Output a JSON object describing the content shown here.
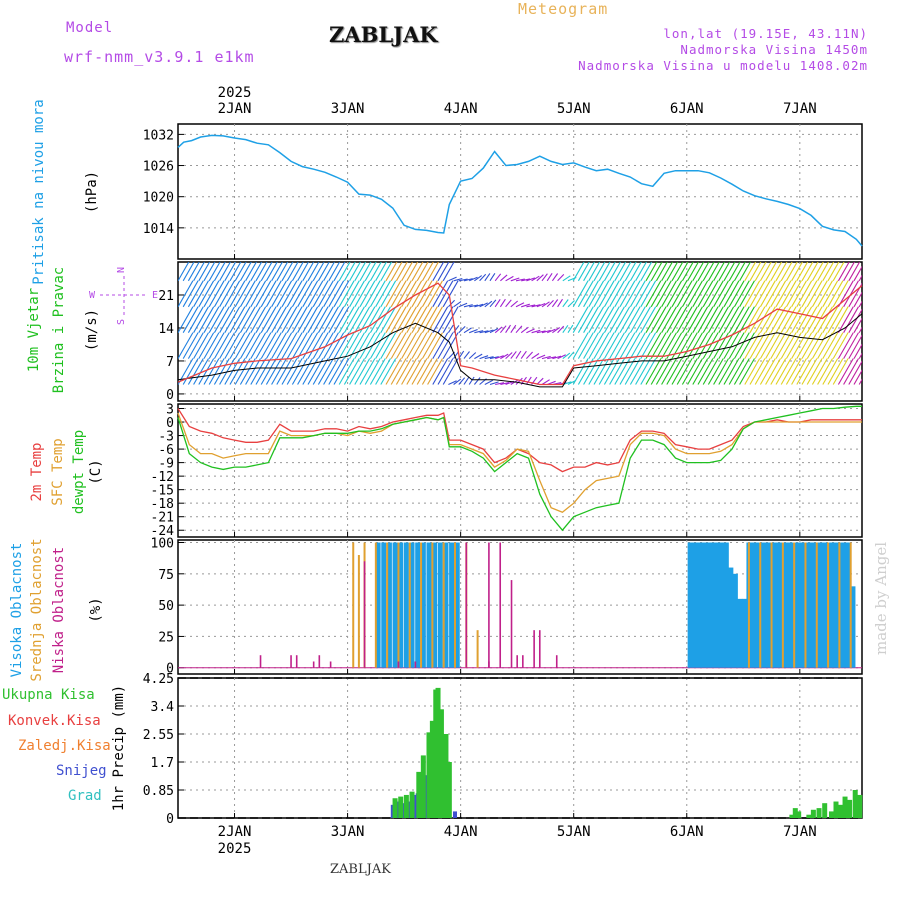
{
  "header": {
    "model_label": "Model",
    "model_value": "wrf-nmm_v3.9.1 e1km",
    "station": "ZABLJAK",
    "meteogram": "Meteogram",
    "lonlat": "lon,lat (19.15E, 43.11N)",
    "elevation": "Nadmorska Visina 1450m",
    "model_elevation": "Nadmorska Visina u modelu 1408.02m"
  },
  "footer": {
    "station": "ZABLJAK",
    "watermark": "made by Angel"
  },
  "colors": {
    "pressure": "#1ea0e6",
    "high_cloud": "#1ea0e6",
    "mid_cloud": "#e0a030",
    "low_cloud": "#c0208a",
    "temp_2m": "#e84040",
    "temp_sfc": "#e0a030",
    "dewpoint": "#20c020",
    "total_precip": "#30c030",
    "conv_precip": "#e84040",
    "frozen_precip": "#f08030",
    "snow": "#4050d0",
    "graupel": "#30c0c0",
    "grid": "#999999"
  },
  "chart_data": [
    {
      "type": "line",
      "name": "pressure",
      "ylabel": [
        "Pritisak na nivou mora",
        "(hPa)"
      ],
      "yticks": [
        1014,
        1020,
        1026,
        1032
      ],
      "ylim": [
        1008,
        1034
      ],
      "xlim": [
        1.5,
        7.55
      ],
      "top_year": "2025",
      "top_ticks": [
        "2JAN",
        "3JAN",
        "4JAN",
        "5JAN",
        "6JAN",
        "7JAN"
      ],
      "x": [
        1.5,
        1.55,
        1.62,
        1.7,
        1.8,
        1.9,
        2.0,
        2.1,
        2.2,
        2.3,
        2.4,
        2.5,
        2.6,
        2.7,
        2.8,
        2.9,
        3.0,
        3.1,
        3.2,
        3.3,
        3.4,
        3.5,
        3.6,
        3.7,
        3.8,
        3.85,
        3.9,
        4.0,
        4.1,
        4.2,
        4.3,
        4.4,
        4.5,
        4.6,
        4.7,
        4.8,
        4.9,
        5.0,
        5.1,
        5.2,
        5.3,
        5.4,
        5.5,
        5.6,
        5.7,
        5.8,
        5.9,
        6.0,
        6.1,
        6.2,
        6.3,
        6.4,
        6.5,
        6.6,
        6.7,
        6.8,
        6.9,
        7.0,
        7.1,
        7.2,
        7.3,
        7.4,
        7.5,
        7.55
      ],
      "y": [
        1029.5,
        1030.5,
        1030.8,
        1031.5,
        1031.8,
        1031.7,
        1031.3,
        1031.0,
        1030.3,
        1030.0,
        1028.5,
        1026.8,
        1025.8,
        1025.3,
        1024.7,
        1023.8,
        1022.8,
        1020.5,
        1020.3,
        1019.5,
        1017.8,
        1014.5,
        1013.7,
        1013.5,
        1013.1,
        1013.0,
        1018.5,
        1023.0,
        1023.5,
        1025.5,
        1028.7,
        1026.0,
        1026.2,
        1026.8,
        1027.8,
        1026.8,
        1026.2,
        1026.5,
        1025.7,
        1025.0,
        1025.3,
        1024.5,
        1023.8,
        1022.5,
        1022.0,
        1024.5,
        1025.0,
        1025.0,
        1025.0,
        1024.6,
        1023.6,
        1022.4,
        1021.1,
        1020.2,
        1019.6,
        1019.1,
        1018.5,
        1017.7,
        1016.4,
        1014.3,
        1013.6,
        1013.3,
        1011.8,
        1010.5
      ]
    },
    {
      "type": "line",
      "name": "wind",
      "ylabel": [
        "10m Vjetar",
        "Brzina i Pravac",
        "(m/s)"
      ],
      "direction_legend": [
        "N",
        "S",
        "W",
        "E"
      ],
      "yticks": [
        0,
        7,
        14,
        21
      ],
      "ylim": [
        -1.5,
        28
      ],
      "series": [
        {
          "name": "mean speed",
          "x": [
            1.5,
            1.8,
            2.0,
            2.2,
            2.5,
            2.8,
            3.0,
            3.2,
            3.4,
            3.6,
            3.8,
            3.9,
            4.0,
            4.1,
            4.3,
            4.5,
            4.7,
            4.9,
            5.0,
            5.2,
            5.4,
            5.6,
            5.8,
            6.0,
            6.2,
            6.4,
            6.6,
            6.8,
            7.0,
            7.2,
            7.4,
            7.55
          ],
          "y": [
            3,
            4,
            5,
            5.5,
            5.5,
            7,
            8,
            10,
            13,
            15,
            13,
            11,
            5,
            3,
            3,
            2.5,
            1.5,
            1.5,
            5.5,
            6,
            6.5,
            7,
            7,
            8,
            9,
            10,
            12,
            13,
            12,
            11.5,
            14,
            17
          ]
        },
        {
          "name": "gust",
          "x": [
            1.5,
            1.8,
            2.0,
            2.2,
            2.5,
            2.8,
            3.0,
            3.2,
            3.4,
            3.6,
            3.8,
            3.9,
            4.0,
            4.1,
            4.3,
            4.5,
            4.7,
            4.9,
            5.0,
            5.2,
            5.4,
            5.6,
            5.8,
            6.0,
            6.2,
            6.4,
            6.6,
            6.8,
            7.0,
            7.2,
            7.4,
            7.55
          ],
          "y": [
            2.5,
            5.5,
            6.5,
            7,
            7.5,
            10,
            12.5,
            14.5,
            18,
            21,
            23.5,
            21,
            6,
            5.5,
            4,
            3,
            2,
            2,
            6,
            7,
            7.5,
            8,
            8,
            9,
            10.5,
            12.5,
            15,
            18,
            17,
            16,
            20,
            23
          ]
        }
      ]
    },
    {
      "type": "line",
      "name": "temperature",
      "ylabel": [
        "2m Temp",
        "SFC Temp",
        "dewpt Temp",
        "(C)"
      ],
      "yticks": [
        3,
        0,
        -3,
        -6,
        -9,
        -12,
        -15,
        -18,
        -21,
        -24
      ],
      "ylim": [
        -25.5,
        4
      ],
      "x": [
        1.5,
        1.6,
        1.7,
        1.8,
        1.9,
        2.0,
        2.1,
        2.2,
        2.3,
        2.4,
        2.5,
        2.6,
        2.7,
        2.8,
        2.9,
        3.0,
        3.1,
        3.2,
        3.3,
        3.4,
        3.5,
        3.6,
        3.7,
        3.8,
        3.85,
        3.9,
        4.0,
        4.1,
        4.2,
        4.3,
        4.4,
        4.5,
        4.6,
        4.7,
        4.8,
        4.9,
        5.0,
        5.1,
        5.2,
        5.3,
        5.4,
        5.5,
        5.6,
        5.7,
        5.8,
        5.9,
        6.0,
        6.1,
        6.2,
        6.3,
        6.4,
        6.5,
        6.6,
        6.7,
        6.8,
        6.9,
        7.0,
        7.1,
        7.2,
        7.3,
        7.4,
        7.5,
        7.55
      ],
      "series": [
        {
          "name": "2m Temp",
          "y": [
            3,
            -1,
            -2,
            -2.5,
            -3.5,
            -4,
            -4.5,
            -4.5,
            -4,
            -0.5,
            -2,
            -2,
            -2,
            -1.5,
            -1.5,
            -2,
            -1,
            -1.5,
            -1,
            0,
            0.5,
            1,
            1.5,
            1.5,
            2,
            -4,
            -4,
            -5,
            -6,
            -9,
            -8,
            -6,
            -7,
            -9,
            -9.5,
            -11,
            -10,
            -10,
            -9,
            -9.5,
            -9,
            -4,
            -2,
            -2,
            -2.5,
            -5,
            -5.5,
            -6,
            -6,
            -5,
            -4,
            -1,
            0,
            0,
            0.5,
            0,
            0,
            0.5,
            0.5,
            0.5,
            0.5,
            0.5,
            0.5
          ]
        },
        {
          "name": "SFC Temp",
          "y": [
            2,
            -5,
            -7,
            -7,
            -8,
            -7.5,
            -7,
            -7,
            -7,
            -2,
            -3,
            -3,
            -3,
            -2.5,
            -2.5,
            -3,
            -2,
            -2.5,
            -2,
            -0.5,
            0,
            0.5,
            1,
            0.5,
            1,
            -5,
            -5,
            -6,
            -7,
            -10,
            -8.5,
            -6,
            -6.5,
            -13,
            -19,
            -20,
            -18,
            -15,
            -13,
            -12.5,
            -12,
            -5,
            -2.5,
            -2.5,
            -3,
            -6,
            -7,
            -7,
            -7,
            -6.5,
            -5,
            -1.5,
            0,
            0,
            0,
            0,
            0,
            0,
            0,
            0,
            0,
            0,
            0
          ]
        },
        {
          "name": "dewpt Temp",
          "y": [
            1,
            -7,
            -9,
            -10,
            -10.5,
            -10,
            -10,
            -9.5,
            -9,
            -3.5,
            -3.5,
            -3.5,
            -3,
            -2.5,
            -2.5,
            -2.5,
            -2,
            -2,
            -1.5,
            -0.5,
            0,
            0.5,
            1,
            0.5,
            1,
            -5.5,
            -5.5,
            -6.5,
            -8,
            -11,
            -9,
            -7,
            -8,
            -16,
            -21,
            -24,
            -21,
            -20,
            -19,
            -18.5,
            -18,
            -8,
            -4,
            -4,
            -5,
            -8,
            -9,
            -9,
            -9,
            -8.5,
            -6,
            -1.5,
            0,
            0.5,
            1,
            1.5,
            2,
            2.5,
            3,
            3,
            3.3,
            3.5,
            3.5
          ]
        }
      ]
    },
    {
      "type": "bar",
      "name": "cloud",
      "ylabel": [
        "Visoka Oblacnost",
        "Srednja Oblacnost",
        "Niska Oblacnost",
        "(%)"
      ],
      "yticks": [
        0,
        25,
        50,
        75,
        100
      ],
      "ylim": [
        -5,
        102
      ],
      "series": [
        {
          "name": "Visoka Oblacnost",
          "x": [
            3.27,
            3.32,
            3.37,
            3.42,
            3.47,
            3.52,
            3.57,
            3.62,
            3.67,
            3.72,
            3.77,
            3.82,
            3.87,
            3.92,
            3.97,
            6.03,
            6.07,
            6.11,
            6.15,
            6.19,
            6.23,
            6.27,
            6.31,
            6.35,
            6.39,
            6.43,
            6.47,
            6.51,
            6.55,
            6.59,
            6.63,
            6.67,
            6.71,
            6.75,
            6.79,
            6.83,
            6.87,
            6.91,
            6.95,
            6.99,
            7.03,
            7.07,
            7.11,
            7.15,
            7.19,
            7.23,
            7.27,
            7.31,
            7.35,
            7.39,
            7.43,
            7.47
          ],
          "values": [
            100,
            100,
            100,
            100,
            100,
            100,
            100,
            100,
            100,
            100,
            100,
            100,
            100,
            100,
            100,
            100,
            100,
            100,
            100,
            100,
            100,
            100,
            100,
            100,
            80,
            75,
            55,
            55,
            100,
            100,
            100,
            100,
            100,
            100,
            100,
            100,
            100,
            100,
            100,
            100,
            100,
            100,
            100,
            100,
            100,
            100,
            100,
            100,
            100,
            100,
            100,
            65
          ]
        },
        {
          "name": "Srednja Oblacnost",
          "x": [
            3.05,
            3.1,
            3.15,
            3.25,
            3.35,
            3.45,
            3.55,
            3.65,
            3.75,
            3.85,
            3.95,
            4.05,
            4.15,
            6.55,
            6.65,
            6.75,
            6.85,
            6.95,
            7.05,
            7.15,
            7.25,
            7.35,
            7.45
          ],
          "values": [
            100,
            90,
            100,
            100,
            100,
            100,
            100,
            100,
            100,
            100,
            100,
            100,
            30,
            100,
            100,
            100,
            100,
            100,
            100,
            100,
            100,
            100,
            100
          ]
        },
        {
          "name": "Niska Oblacnost",
          "x": [
            2.23,
            2.5,
            2.55,
            2.7,
            2.75,
            2.85,
            3.15,
            3.45,
            3.6,
            4.05,
            4.25,
            4.25,
            4.35,
            4.45,
            4.5,
            4.55,
            4.65,
            4.7,
            4.85
          ],
          "values": [
            10,
            10,
            10,
            5,
            10,
            5,
            85,
            5,
            5,
            100,
            5,
            100,
            100,
            70,
            10,
            10,
            30,
            30,
            10
          ]
        }
      ]
    },
    {
      "type": "bar",
      "name": "precipitation",
      "ylabel": [
        "1hr Precip (mm)"
      ],
      "legend": [
        "Ukupna Kisa",
        "Konvek.Kisa",
        "Zaledj.Kisa",
        "Snijeg",
        "Grad"
      ],
      "yticks": [
        0,
        0.85,
        1.7,
        2.55,
        3.4,
        4.25
      ],
      "ylim": [
        0,
        4.25
      ],
      "bottom_ticks": [
        "2JAN",
        "3JAN",
        "4JAN",
        "5JAN",
        "6JAN",
        "7JAN"
      ],
      "bottom_year": "2025",
      "series": [
        {
          "name": "Snijeg",
          "x": [
            3.4,
            3.45,
            3.5,
            3.55,
            3.6,
            3.62,
            3.65,
            3.7,
            3.75,
            3.8,
            3.85,
            3.9,
            3.95
          ],
          "values": [
            0.4,
            0.5,
            0.45,
            0.5,
            0.7,
            0.75,
            1.1,
            1.3,
            1.9,
            1.9,
            1.5,
            1.0,
            0.2
          ]
        },
        {
          "name": "Ukupna Kisa",
          "x": [
            3.42,
            3.47,
            3.52,
            3.57,
            3.63,
            3.67,
            3.72,
            3.75,
            3.78,
            3.8,
            3.83,
            3.87,
            3.9,
            6.93,
            6.96,
            6.99,
            7.08,
            7.12,
            7.17,
            7.22,
            7.28,
            7.32,
            7.36,
            7.4,
            7.44,
            7.49,
            7.53
          ],
          "values": [
            0.6,
            0.65,
            0.7,
            0.8,
            1.4,
            1.9,
            2.6,
            2.95,
            3.9,
            3.95,
            3.3,
            2.55,
            1.7,
            0.1,
            0.3,
            0.2,
            0.1,
            0.25,
            0.3,
            0.45,
            0.2,
            0.5,
            0.4,
            0.65,
            0.55,
            0.85,
            0.7
          ]
        }
      ]
    }
  ]
}
